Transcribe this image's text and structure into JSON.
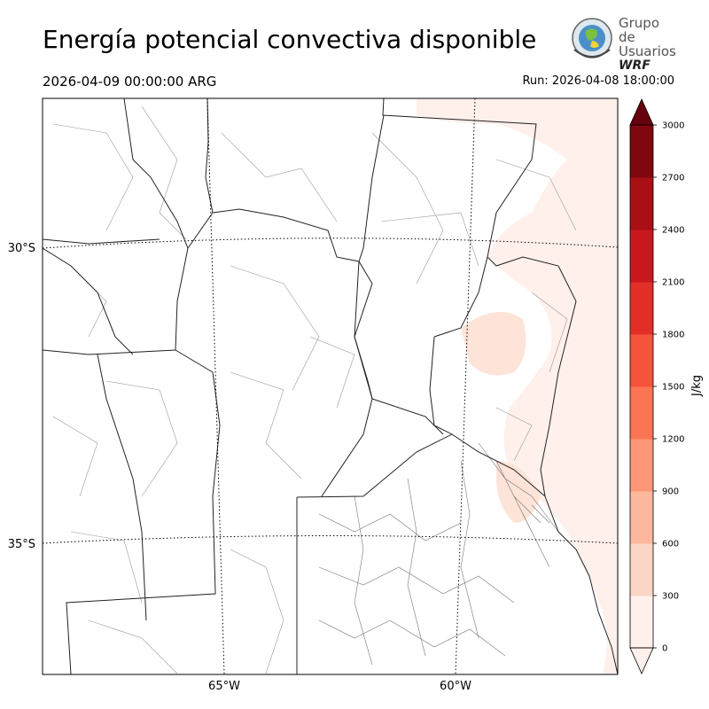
{
  "title": "Energía potencial convectiva disponible",
  "valid_time": "2026-04-09 00:00:00 ARG",
  "run_time": "Run: 2026-04-08 18:00:00",
  "logo": {
    "line1": "Grupo de",
    "line2": "Usuarios",
    "line3": "WRF"
  },
  "map": {
    "lat_labels": [
      "30°S",
      "35°S"
    ],
    "lon_labels": [
      "65°W",
      "60°W"
    ]
  },
  "colorbar": {
    "unit": "J/kg",
    "ticks": [
      "0",
      "300",
      "600",
      "900",
      "1200",
      "1500",
      "1800",
      "2100",
      "2400",
      "2700",
      "3000"
    ],
    "colors": [
      "#fff0eb",
      "#fdd5c4",
      "#fcb89c",
      "#fc9677",
      "#fb7555",
      "#f5533a",
      "#e32e27",
      "#c8171d",
      "#a90f15",
      "#800710",
      "#67000d"
    ]
  }
}
